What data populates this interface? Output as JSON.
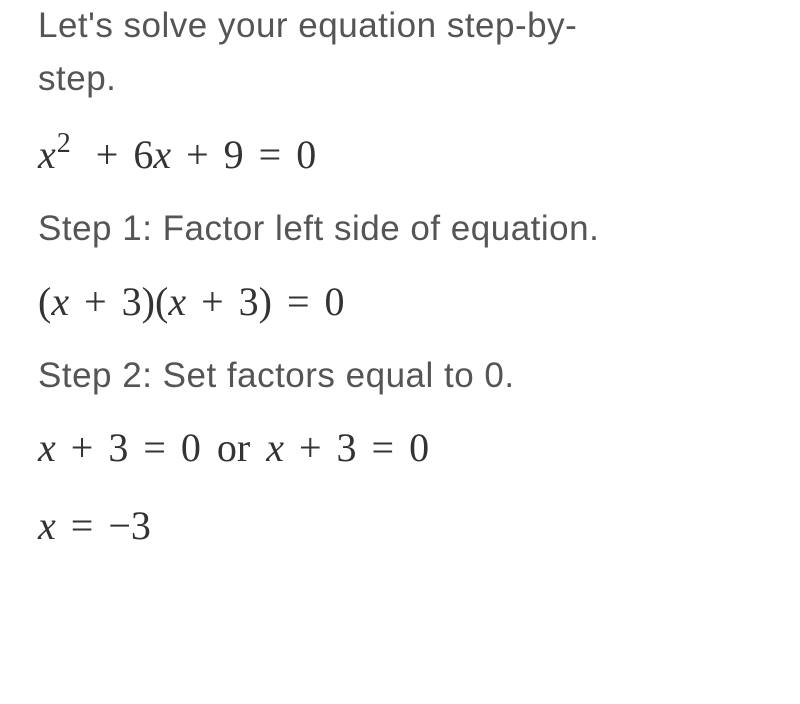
{
  "intro_line1": "Let's solve your equation step-by-",
  "intro_line2": "step.",
  "equation1": {
    "variable": "x",
    "exponent": "2",
    "plus1": "+",
    "coef1": "6",
    "var1": "x",
    "plus2": "+",
    "const1": "9",
    "equals": "=",
    "rhs": "0"
  },
  "step1_label": "Step 1: Factor left side of equation.",
  "equation2": {
    "lparen1": "(",
    "var1": "x",
    "plus1": "+",
    "const1": "3",
    "rparen1": ")",
    "lparen2": "(",
    "var2": "x",
    "plus2": "+",
    "const2": "3",
    "rparen2": ")",
    "equals": "=",
    "rhs": "0"
  },
  "step2_label": "Step 2: Set factors equal to 0.",
  "equation3": {
    "var1": "x",
    "plus1": "+",
    "const1": "3",
    "equals1": "=",
    "rhs1": "0",
    "or_word": "or",
    "var2": "x",
    "plus2": "+",
    "const2": "3",
    "equals2": "=",
    "rhs2": "0"
  },
  "equation4": {
    "var1": "x",
    "equals": "=",
    "neg": "−",
    "const1": "3"
  },
  "colors": {
    "text": "#555555",
    "math": "#333333",
    "background": "#ffffff"
  },
  "typography": {
    "text_fontsize": 35,
    "text_weight": 300,
    "math_fontsize": 40,
    "math_family": "Times New Roman"
  }
}
